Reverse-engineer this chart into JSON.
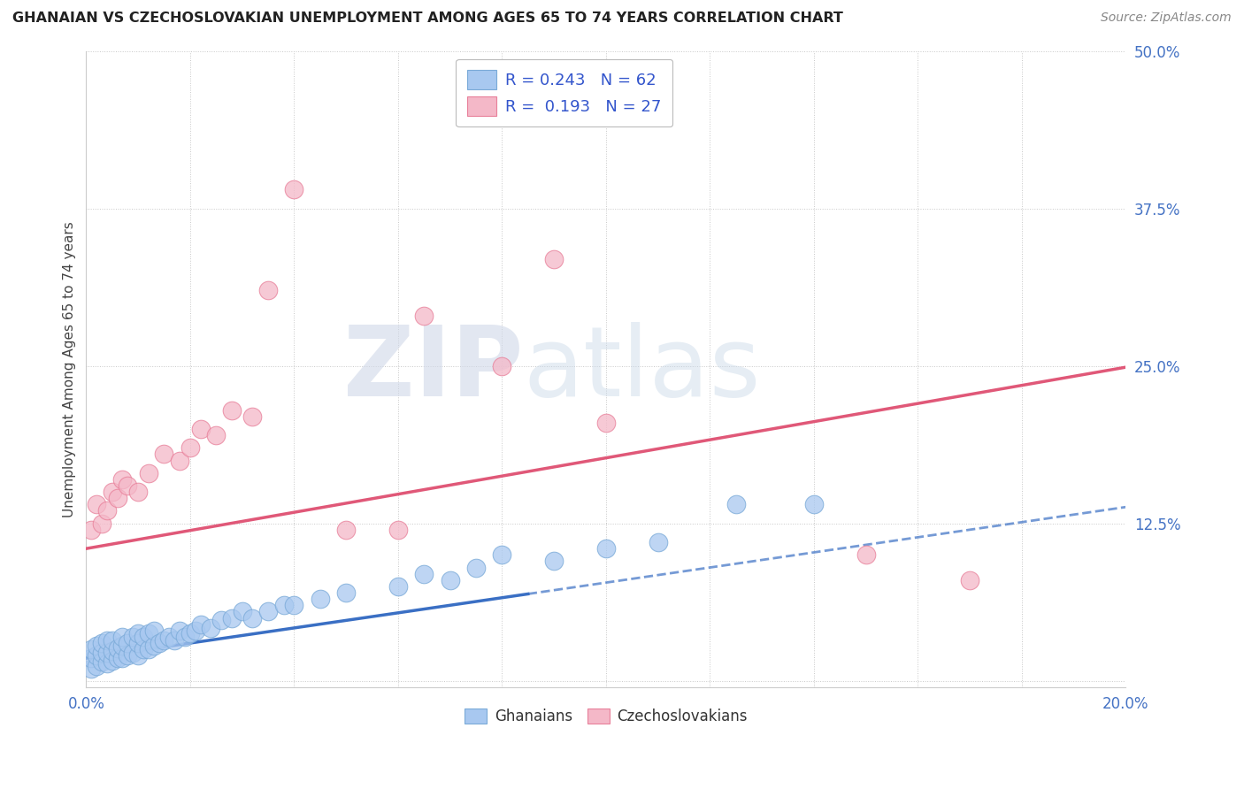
{
  "title": "GHANAIAN VS CZECHOSLOVAKIAN UNEMPLOYMENT AMONG AGES 65 TO 74 YEARS CORRELATION CHART",
  "source": "Source: ZipAtlas.com",
  "ylabel": "Unemployment Among Ages 65 to 74 years",
  "xlim": [
    0.0,
    0.2
  ],
  "ylim": [
    -0.005,
    0.5
  ],
  "ghanaian_color": "#a8c8f0",
  "ghanaian_edge_color": "#7aaad8",
  "czechoslovakian_color": "#f4b8c8",
  "czechoslovakian_edge_color": "#e8809a",
  "ghanaian_R": 0.243,
  "ghanaian_N": 62,
  "czechoslovakian_R": 0.193,
  "czechoslovakian_N": 27,
  "ghanaian_trend_intercept": 0.018,
  "ghanaian_trend_slope": 0.6,
  "czechoslovakian_trend_intercept": 0.105,
  "czechoslovakian_trend_slope": 0.72,
  "ghanaian_trend_solid_end": 0.085,
  "watermark": "ZIPatlas",
  "background_color": "#ffffff",
  "ghanaian_x": [
    0.001,
    0.001,
    0.001,
    0.002,
    0.002,
    0.002,
    0.003,
    0.003,
    0.003,
    0.004,
    0.004,
    0.004,
    0.005,
    0.005,
    0.005,
    0.006,
    0.006,
    0.007,
    0.007,
    0.007,
    0.008,
    0.008,
    0.009,
    0.009,
    0.01,
    0.01,
    0.01,
    0.011,
    0.011,
    0.012,
    0.012,
    0.013,
    0.013,
    0.014,
    0.015,
    0.016,
    0.017,
    0.018,
    0.019,
    0.02,
    0.021,
    0.022,
    0.024,
    0.026,
    0.028,
    0.03,
    0.032,
    0.035,
    0.038,
    0.04,
    0.045,
    0.05,
    0.06,
    0.065,
    0.07,
    0.075,
    0.08,
    0.09,
    0.1,
    0.11,
    0.125,
    0.14
  ],
  "ghanaian_y": [
    0.01,
    0.018,
    0.025,
    0.012,
    0.02,
    0.028,
    0.015,
    0.022,
    0.03,
    0.014,
    0.022,
    0.032,
    0.016,
    0.024,
    0.032,
    0.018,
    0.026,
    0.018,
    0.028,
    0.035,
    0.02,
    0.03,
    0.022,
    0.035,
    0.02,
    0.03,
    0.038,
    0.025,
    0.035,
    0.025,
    0.038,
    0.028,
    0.04,
    0.03,
    0.032,
    0.035,
    0.032,
    0.04,
    0.035,
    0.038,
    0.04,
    0.045,
    0.042,
    0.048,
    0.05,
    0.055,
    0.05,
    0.055,
    0.06,
    0.06,
    0.065,
    0.07,
    0.075,
    0.085,
    0.08,
    0.09,
    0.1,
    0.095,
    0.105,
    0.11,
    0.14,
    0.14
  ],
  "czechoslovakian_x": [
    0.001,
    0.002,
    0.003,
    0.004,
    0.005,
    0.006,
    0.007,
    0.008,
    0.01,
    0.012,
    0.015,
    0.018,
    0.02,
    0.022,
    0.025,
    0.028,
    0.032,
    0.035,
    0.04,
    0.05,
    0.06,
    0.065,
    0.08,
    0.09,
    0.1,
    0.15,
    0.17
  ],
  "czechoslovakian_y": [
    0.12,
    0.14,
    0.125,
    0.135,
    0.15,
    0.145,
    0.16,
    0.155,
    0.15,
    0.165,
    0.18,
    0.175,
    0.185,
    0.2,
    0.195,
    0.215,
    0.21,
    0.31,
    0.39,
    0.12,
    0.12,
    0.29,
    0.25,
    0.335,
    0.205,
    0.1,
    0.08
  ]
}
